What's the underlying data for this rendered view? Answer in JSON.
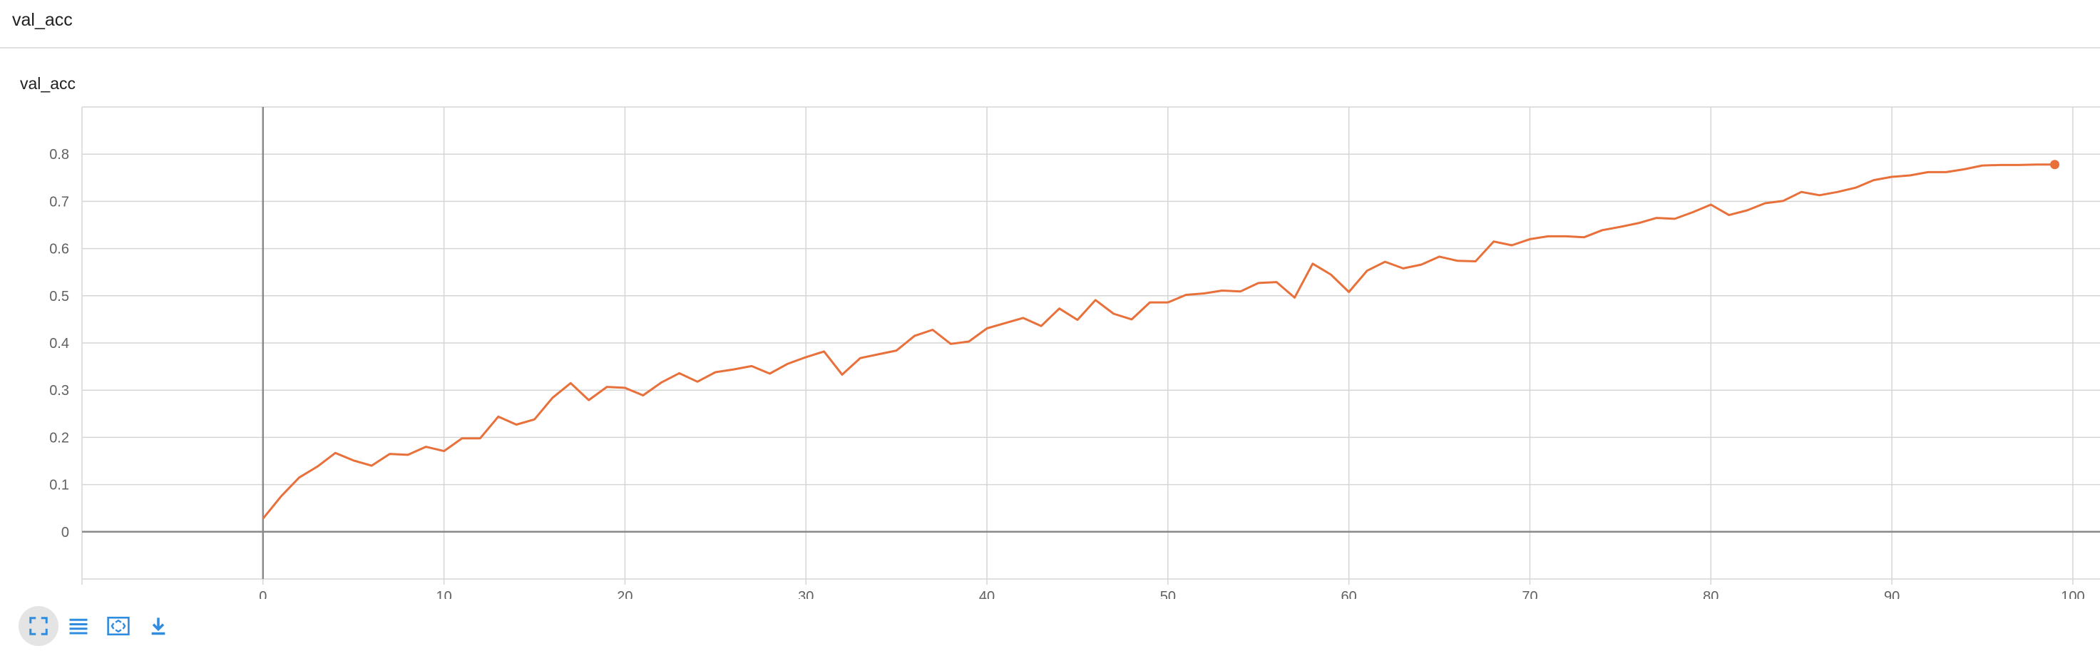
{
  "section": {
    "title": "val_acc"
  },
  "card": {
    "title": "val_acc"
  },
  "toolbar": [
    {
      "name": "fullscreen-icon",
      "active": true
    },
    {
      "name": "list-icon",
      "active": false
    },
    {
      "name": "fit-domain-icon",
      "active": false
    },
    {
      "name": "download-icon",
      "active": false
    }
  ],
  "colors": {
    "series": "#e8703a",
    "grid": "#d6d6d6",
    "axis": "#8a8a8a",
    "accent": "#2f8cde"
  },
  "chart_data": {
    "type": "line",
    "title": "val_acc",
    "xlabel": "",
    "ylabel": "",
    "xlim": [
      -10,
      101.5
    ],
    "ylim": [
      -0.1,
      0.9
    ],
    "xticks": [
      0,
      10,
      20,
      30,
      40,
      50,
      60,
      70,
      80,
      90,
      100
    ],
    "yticks": [
      0,
      0.1,
      0.2,
      0.3,
      0.4,
      0.5,
      0.6,
      0.7,
      0.8
    ],
    "grid": true,
    "series": [
      {
        "x": [
          0,
          1,
          2,
          3,
          4,
          5,
          6,
          7,
          8,
          9,
          10,
          11,
          12,
          13,
          14,
          15,
          16,
          17,
          18,
          19,
          20,
          21,
          22,
          23,
          24,
          25,
          26,
          27,
          28,
          29,
          30,
          31,
          32,
          33,
          34,
          35,
          36,
          37,
          38,
          39,
          40,
          41,
          42,
          43,
          44,
          45,
          46,
          47,
          48,
          49,
          50,
          51,
          52,
          53,
          54,
          55,
          56,
          57,
          58,
          59,
          60,
          61,
          62,
          63,
          64,
          65,
          66,
          67,
          68,
          69,
          70,
          71,
          72,
          73,
          74,
          75,
          76,
          77,
          78,
          79,
          80,
          81,
          82,
          83,
          84,
          85,
          86,
          87,
          88,
          89,
          90,
          91,
          92,
          93,
          94,
          95,
          96,
          97,
          98,
          99
        ],
        "values": [
          0.028,
          0.075,
          0.115,
          0.138,
          0.167,
          0.151,
          0.14,
          0.165,
          0.163,
          0.18,
          0.171,
          0.198,
          0.198,
          0.244,
          0.227,
          0.238,
          0.284,
          0.315,
          0.279,
          0.307,
          0.305,
          0.289,
          0.316,
          0.336,
          0.318,
          0.338,
          0.344,
          0.351,
          0.335,
          0.356,
          0.37,
          0.382,
          0.333,
          0.368,
          0.376,
          0.384,
          0.415,
          0.428,
          0.398,
          0.403,
          0.431,
          0.442,
          0.453,
          0.436,
          0.473,
          0.449,
          0.491,
          0.462,
          0.45,
          0.486,
          0.486,
          0.502,
          0.505,
          0.511,
          0.509,
          0.527,
          0.529,
          0.496,
          0.568,
          0.545,
          0.508,
          0.553,
          0.572,
          0.558,
          0.566,
          0.583,
          0.574,
          0.573,
          0.615,
          0.607,
          0.62,
          0.626,
          0.626,
          0.624,
          0.639,
          0.646,
          0.654,
          0.665,
          0.663,
          0.677,
          0.693,
          0.671,
          0.681,
          0.696,
          0.701,
          0.72,
          0.713,
          0.72,
          0.729,
          0.745,
          0.752,
          0.755,
          0.762,
          0.762,
          0.768,
          0.776,
          0.777,
          0.777,
          0.778,
          0.778
        ]
      }
    ]
  }
}
